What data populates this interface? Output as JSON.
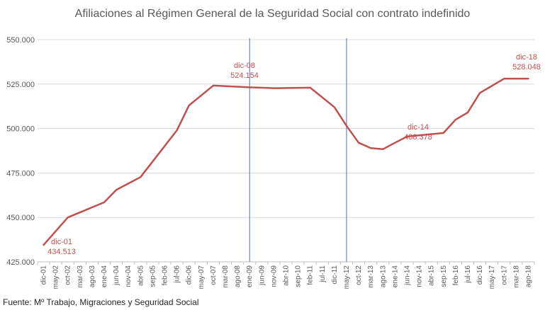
{
  "chart_data": {
    "type": "line",
    "title": "Afiliaciones al Régimen General de la Seguridad Social con contrato indefinido",
    "source": "Fuente: Mº Trabajo, Migraciones y Seguridad Social",
    "xlabel": "",
    "ylabel": "",
    "ylim": [
      425000,
      550000
    ],
    "yticks": [
      425000,
      450000,
      475000,
      500000,
      525000,
      550000
    ],
    "ytick_labels": [
      "425.000",
      "450.000",
      "475.000",
      "500.000",
      "525.000",
      "550.000"
    ],
    "grid": true,
    "legend": "none",
    "line_color": "#c0504d",
    "vline_color": "#4472c4",
    "categories": [
      "dic-01",
      "may-02",
      "oct-02",
      "mar-03",
      "ago-03",
      "ene-04",
      "jun-04",
      "nov-04",
      "abr-05",
      "sep-05",
      "feb-06",
      "jul-06",
      "dic-06",
      "may-07",
      "oct-07",
      "mar-08",
      "ago-08",
      "ene-09",
      "jun-09",
      "nov-09",
      "abr-10",
      "sep-10",
      "feb-11",
      "jul-11",
      "dic-11",
      "may-12",
      "oct-12",
      "mar-13",
      "ago-13",
      "ene-14",
      "jun-14",
      "nov-14",
      "abr-15",
      "sep-15",
      "feb-16",
      "jul-16",
      "dic-16",
      "may-17",
      "oct-17",
      "mar-18",
      "ago-18"
    ],
    "series": [
      {
        "x": [
          "dic-01",
          "oct-02",
          "ene-04",
          "jun-04",
          "abr-05",
          "jul-06",
          "dic-06",
          "oct-07",
          "ene-09",
          "nov-09",
          "feb-11",
          "dic-11",
          "may-12",
          "oct-12",
          "mar-13",
          "ago-13",
          "ene-14",
          "jun-14",
          "sep-15",
          "feb-16",
          "jul-16",
          "dic-16",
          "oct-17",
          "ago-18"
        ],
        "values": [
          434513,
          450000,
          458500,
          465500,
          472700,
          499000,
          513000,
          524154,
          523200,
          522700,
          523000,
          512000,
          501500,
          492000,
          489000,
          488378,
          492000,
          495500,
          497500,
          505000,
          509000,
          520000,
          528048,
          528048
        ]
      }
    ],
    "vertical_lines_at": [
      "ene-09",
      "may-12"
    ],
    "annotations": [
      {
        "label": "dic-01",
        "value": "434.513"
      },
      {
        "label": "dic-08",
        "value": "524.154"
      },
      {
        "label": "dic-14",
        "value": "488.378"
      },
      {
        "label": "dic-18",
        "value": "528.048"
      }
    ]
  }
}
